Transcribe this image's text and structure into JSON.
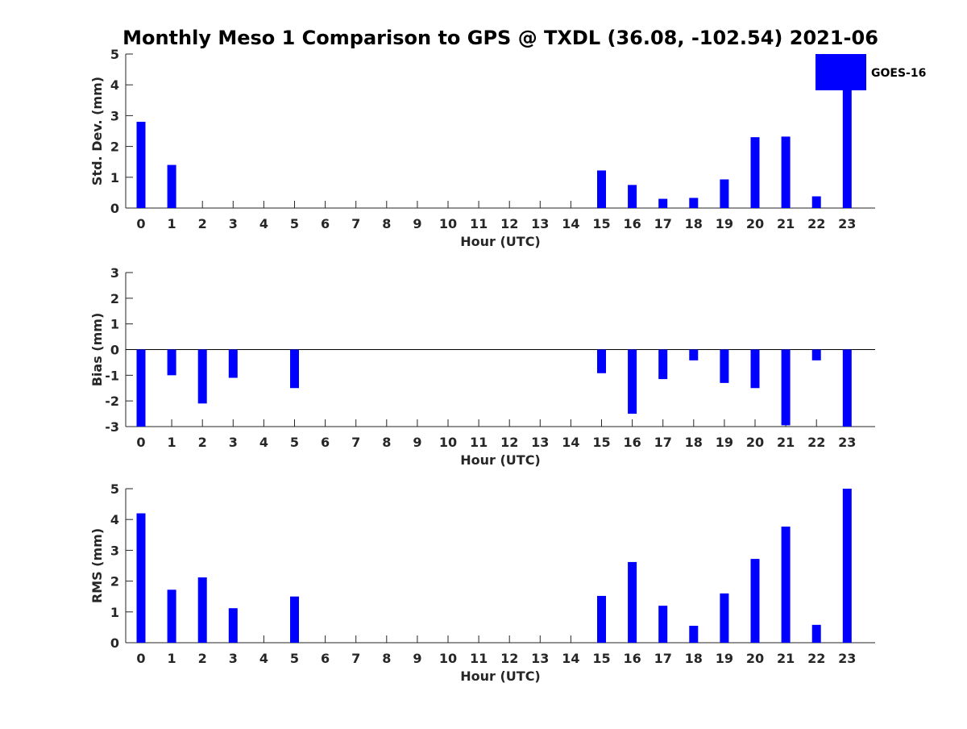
{
  "title": "Monthly Meso 1 Comparison to GPS @ TXDL (36.08, -102.54) 2021-06",
  "colors": {
    "bar": "#0000ff",
    "axis": "#262626"
  },
  "legend": {
    "label": "GOES-16",
    "placement": "top-right"
  },
  "chart_data": [
    {
      "type": "bar",
      "title": "Monthly Meso 1 Comparison to GPS @ TXDL (36.08, -102.54) 2021-06",
      "xlabel": "Hour (UTC)",
      "ylabel": "Std. Dev. (mm)",
      "ylim": [
        0,
        5
      ],
      "yticks": [
        0,
        1,
        2,
        3,
        4,
        5
      ],
      "categories": [
        "0",
        "1",
        "2",
        "3",
        "4",
        "5",
        "6",
        "7",
        "8",
        "9",
        "10",
        "11",
        "12",
        "13",
        "14",
        "15",
        "16",
        "17",
        "18",
        "19",
        "20",
        "21",
        "22",
        "23"
      ],
      "series": [
        {
          "name": "GOES-16",
          "values": [
            2.8,
            1.4,
            0,
            0,
            0,
            0,
            0,
            0,
            0,
            0,
            0,
            0,
            0,
            0,
            0,
            1.22,
            0.75,
            0.3,
            0.33,
            0.93,
            2.3,
            2.32,
            0.38,
            5.0
          ]
        }
      ]
    },
    {
      "type": "bar",
      "xlabel": "Hour (UTC)",
      "ylabel": "Bias (mm)",
      "ylim": [
        -3,
        3
      ],
      "yticks": [
        -3,
        -2,
        -1,
        0,
        1,
        2,
        3
      ],
      "categories": [
        "0",
        "1",
        "2",
        "3",
        "4",
        "5",
        "6",
        "7",
        "8",
        "9",
        "10",
        "11",
        "12",
        "13",
        "14",
        "15",
        "16",
        "17",
        "18",
        "19",
        "20",
        "21",
        "22",
        "23"
      ],
      "series": [
        {
          "name": "GOES-16",
          "values": [
            -3.0,
            -1.0,
            -2.1,
            -1.1,
            0,
            -1.5,
            0,
            0,
            0,
            0,
            0,
            0,
            0,
            0,
            0,
            -0.92,
            -2.5,
            -1.15,
            -0.42,
            -1.3,
            -1.5,
            -2.95,
            -0.42,
            -3.0
          ]
        }
      ]
    },
    {
      "type": "bar",
      "xlabel": "Hour (UTC)",
      "ylabel": "RMS (mm)",
      "ylim": [
        0,
        5
      ],
      "yticks": [
        0,
        1,
        2,
        3,
        4,
        5
      ],
      "categories": [
        "0",
        "1",
        "2",
        "3",
        "4",
        "5",
        "6",
        "7",
        "8",
        "9",
        "10",
        "11",
        "12",
        "13",
        "14",
        "15",
        "16",
        "17",
        "18",
        "19",
        "20",
        "21",
        "22",
        "23"
      ],
      "series": [
        {
          "name": "GOES-16",
          "values": [
            4.2,
            1.72,
            2.12,
            1.12,
            0,
            1.5,
            0,
            0,
            0,
            0,
            0,
            0,
            0,
            0,
            0,
            1.52,
            2.62,
            1.2,
            0.55,
            1.6,
            2.72,
            3.77,
            0.58,
            5.0
          ]
        }
      ]
    }
  ]
}
